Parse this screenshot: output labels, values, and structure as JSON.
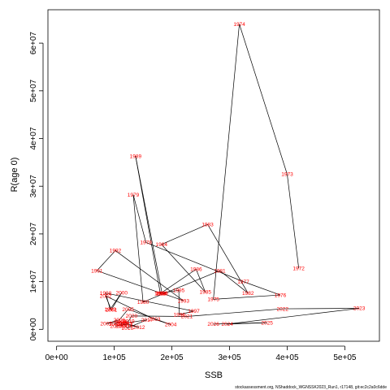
{
  "chart_data": {
    "type": "line",
    "xlabel": "SSB",
    "ylabel": "R(age 0)",
    "xlim": [
      -15000,
      560000
    ],
    "ylim": [
      -2500000,
      67000000
    ],
    "x_ticks": [
      0,
      100000,
      200000,
      300000,
      400000,
      500000
    ],
    "x_tick_labels": [
      "0e+00",
      "1e+05",
      "2e+05",
      "3e+05",
      "4e+05",
      "5e+05"
    ],
    "y_ticks": [
      0,
      10000000,
      20000000,
      30000000,
      40000000,
      50000000,
      60000000
    ],
    "y_tick_labels": [
      "0e+00",
      "1e+07",
      "2e+07",
      "3e+07",
      "4e+07",
      "5e+07",
      "6e+07"
    ],
    "points": [
      {
        "year": "1972",
        "x": 420000,
        "y": 12800000
      },
      {
        "year": "1973",
        "x": 400000,
        "y": 32500000
      },
      {
        "year": "1974",
        "x": 317000,
        "y": 64000000
      },
      {
        "year": "1975",
        "x": 272000,
        "y": 6300000
      },
      {
        "year": "1976",
        "x": 388000,
        "y": 7200000
      },
      {
        "year": "1977",
        "x": 324000,
        "y": 10000000
      },
      {
        "year": "1978",
        "x": 155000,
        "y": 18200000
      },
      {
        "year": "1979",
        "x": 133000,
        "y": 28200000
      },
      {
        "year": "1980",
        "x": 150000,
        "y": 5700000
      },
      {
        "year": "1981",
        "x": 283000,
        "y": 12300000
      },
      {
        "year": "1982",
        "x": 332000,
        "y": 7600000
      },
      {
        "year": "1983",
        "x": 262000,
        "y": 22000000
      },
      {
        "year": "1984",
        "x": 182000,
        "y": 17800000
      },
      {
        "year": "1985",
        "x": 258000,
        "y": 7800000
      },
      {
        "year": "1986",
        "x": 242000,
        "y": 12600000
      },
      {
        "year": "1987",
        "x": 180000,
        "y": 7500000
      },
      {
        "year": "1988",
        "x": 180000,
        "y": 7500000
      },
      {
        "year": "1989",
        "x": 137000,
        "y": 36300000
      },
      {
        "year": "1990",
        "x": 183000,
        "y": 7500000
      },
      {
        "year": "1991",
        "x": 70000,
        "y": 12300000
      },
      {
        "year": "1992",
        "x": 102000,
        "y": 16500000
      },
      {
        "year": "1993",
        "x": 220000,
        "y": 6000000
      },
      {
        "year": "1994",
        "x": 182000,
        "y": 7600000
      },
      {
        "year": "1995",
        "x": 212000,
        "y": 8200000
      },
      {
        "year": "1996",
        "x": 213000,
        "y": 3100000
      },
      {
        "year": "1997",
        "x": 238000,
        "y": 3800000
      },
      {
        "year": "1998",
        "x": 85000,
        "y": 7600000
      },
      {
        "year": "1999",
        "x": 93000,
        "y": 4200000
      },
      {
        "year": "2000",
        "x": 113000,
        "y": 7700000
      },
      {
        "year": "2001",
        "x": 95000,
        "y": 4100000
      },
      {
        "year": "2002",
        "x": 85000,
        "y": 7000000
      },
      {
        "year": "2003",
        "x": 170000,
        "y": 2100000
      },
      {
        "year": "2004",
        "x": 198000,
        "y": 1000000
      },
      {
        "year": "2005",
        "x": 124000,
        "y": 4200000
      },
      {
        "year": "2006",
        "x": 109000,
        "y": 2000000
      },
      {
        "year": "2007",
        "x": 86000,
        "y": 1200000
      },
      {
        "year": "2008",
        "x": 111000,
        "y": 1600000
      },
      {
        "year": "2009",
        "x": 101000,
        "y": 1100000
      },
      {
        "year": "2010",
        "x": 103000,
        "y": 700000
      },
      {
        "year": "2011",
        "x": 122000,
        "y": 1000000
      },
      {
        "year": "2012",
        "x": 143000,
        "y": 400000
      },
      {
        "year": "2013",
        "x": 122000,
        "y": 1200000
      },
      {
        "year": "2014",
        "x": 112000,
        "y": 700000
      },
      {
        "year": "2015",
        "x": 113000,
        "y": 1400000
      },
      {
        "year": "2016",
        "x": 123000,
        "y": 300000
      },
      {
        "year": "2017",
        "x": 157000,
        "y": 2000000
      },
      {
        "year": "2018",
        "x": 115000,
        "y": 1200000
      },
      {
        "year": "2019",
        "x": 125000,
        "y": 1700000
      },
      {
        "year": "2020",
        "x": 130000,
        "y": 2800000
      },
      {
        "year": "2021",
        "x": 226000,
        "y": 2700000
      },
      {
        "year": "2022",
        "x": 392000,
        "y": 4300000
      },
      {
        "year": "2023",
        "x": 525000,
        "y": 4400000
      },
      {
        "year": "2024",
        "x": 296000,
        "y": 1100000
      },
      {
        "year": "2025",
        "x": 365000,
        "y": 1400000
      },
      {
        "year": "2026",
        "x": 272000,
        "y": 1100000
      }
    ]
  },
  "labels": {
    "ssb": "SSB",
    "recruitment": "R(age 0)"
  },
  "footer": {
    "text": "stockassessment.org, NShaddock_WGNSSK2023_Run1, r17148, git:ec2c2a0c6dde"
  }
}
